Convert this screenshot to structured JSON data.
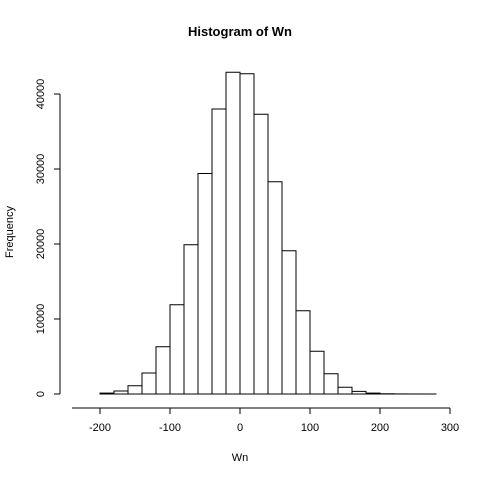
{
  "chart_data": {
    "type": "bar",
    "title": "Histogram of Wn",
    "xlabel": "Wn",
    "ylabel": "Frequency",
    "xlim": [
      -240,
      300
    ],
    "ylim": [
      0,
      45000
    ],
    "xticks": [
      "-200",
      "-100",
      "0",
      "100",
      "200",
      "300"
    ],
    "yticks": [
      "0",
      "10000",
      "20000",
      "30000",
      "40000"
    ],
    "bin_width": 20,
    "bins": [
      {
        "start": -200,
        "end": -180,
        "count": 120
      },
      {
        "start": -180,
        "end": -160,
        "count": 400
      },
      {
        "start": -160,
        "end": -140,
        "count": 1100
      },
      {
        "start": -140,
        "end": -120,
        "count": 2800
      },
      {
        "start": -120,
        "end": -100,
        "count": 6300
      },
      {
        "start": -100,
        "end": -80,
        "count": 11900
      },
      {
        "start": -80,
        "end": -60,
        "count": 19900
      },
      {
        "start": -60,
        "end": -40,
        "count": 29400
      },
      {
        "start": -40,
        "end": -20,
        "count": 38000
      },
      {
        "start": -20,
        "end": 0,
        "count": 42900
      },
      {
        "start": 0,
        "end": 20,
        "count": 42700
      },
      {
        "start": 20,
        "end": 40,
        "count": 37300
      },
      {
        "start": 40,
        "end": 60,
        "count": 28300
      },
      {
        "start": 60,
        "end": 80,
        "count": 19100
      },
      {
        "start": 80,
        "end": 100,
        "count": 11100
      },
      {
        "start": 100,
        "end": 120,
        "count": 5700
      },
      {
        "start": 120,
        "end": 140,
        "count": 2700
      },
      {
        "start": 140,
        "end": 160,
        "count": 900
      },
      {
        "start": 160,
        "end": 180,
        "count": 350
      },
      {
        "start": 180,
        "end": 200,
        "count": 120
      },
      {
        "start": 200,
        "end": 220,
        "count": 30
      },
      {
        "start": 220,
        "end": 240,
        "count": 10
      },
      {
        "start": 240,
        "end": 260,
        "count": 3
      },
      {
        "start": 260,
        "end": 280,
        "count": 1
      }
    ]
  }
}
